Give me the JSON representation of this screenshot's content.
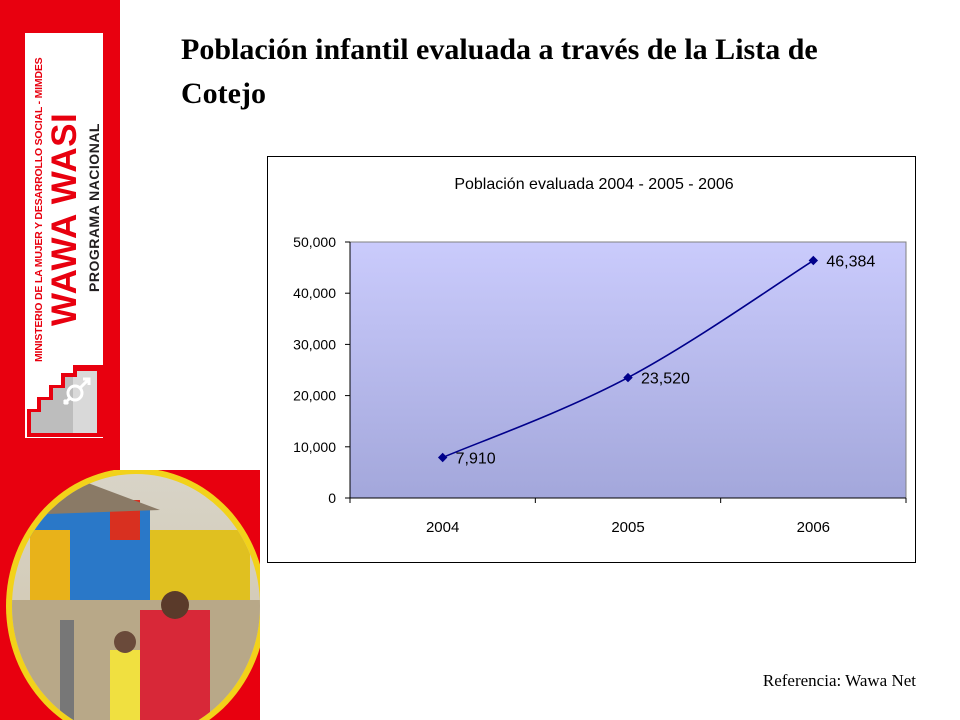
{
  "slide": {
    "title": "Población infantil evaluada a través de la Lista de Cotejo",
    "reference": "Referencia:  Wawa Net"
  },
  "logo": {
    "ministry": "MINISTERIO DE LA MUJER Y DESARROLLO SOCIAL - MIMDES",
    "brand": "WAWA WASI",
    "program": "PROGRAMA NACIONAL",
    "brand_color": "#e8000f"
  },
  "chart_data": {
    "type": "line",
    "title": "Población evaluada 2004 - 2005 - 2006",
    "categories": [
      "2004",
      "2005",
      "2006"
    ],
    "series": [
      {
        "values": [
          7910,
          23520,
          46384
        ],
        "labels": [
          "7,910",
          "23,520",
          "46,384"
        ],
        "color": "#00008b"
      }
    ],
    "y_ticks": [
      "0",
      "10,000",
      "20,000",
      "30,000",
      "40,000",
      "50,000"
    ],
    "ylim": [
      0,
      50000
    ],
    "grid": false,
    "legend": "none",
    "plot_background": "gradient lavender #c8c8fb to #a4a8dc"
  }
}
